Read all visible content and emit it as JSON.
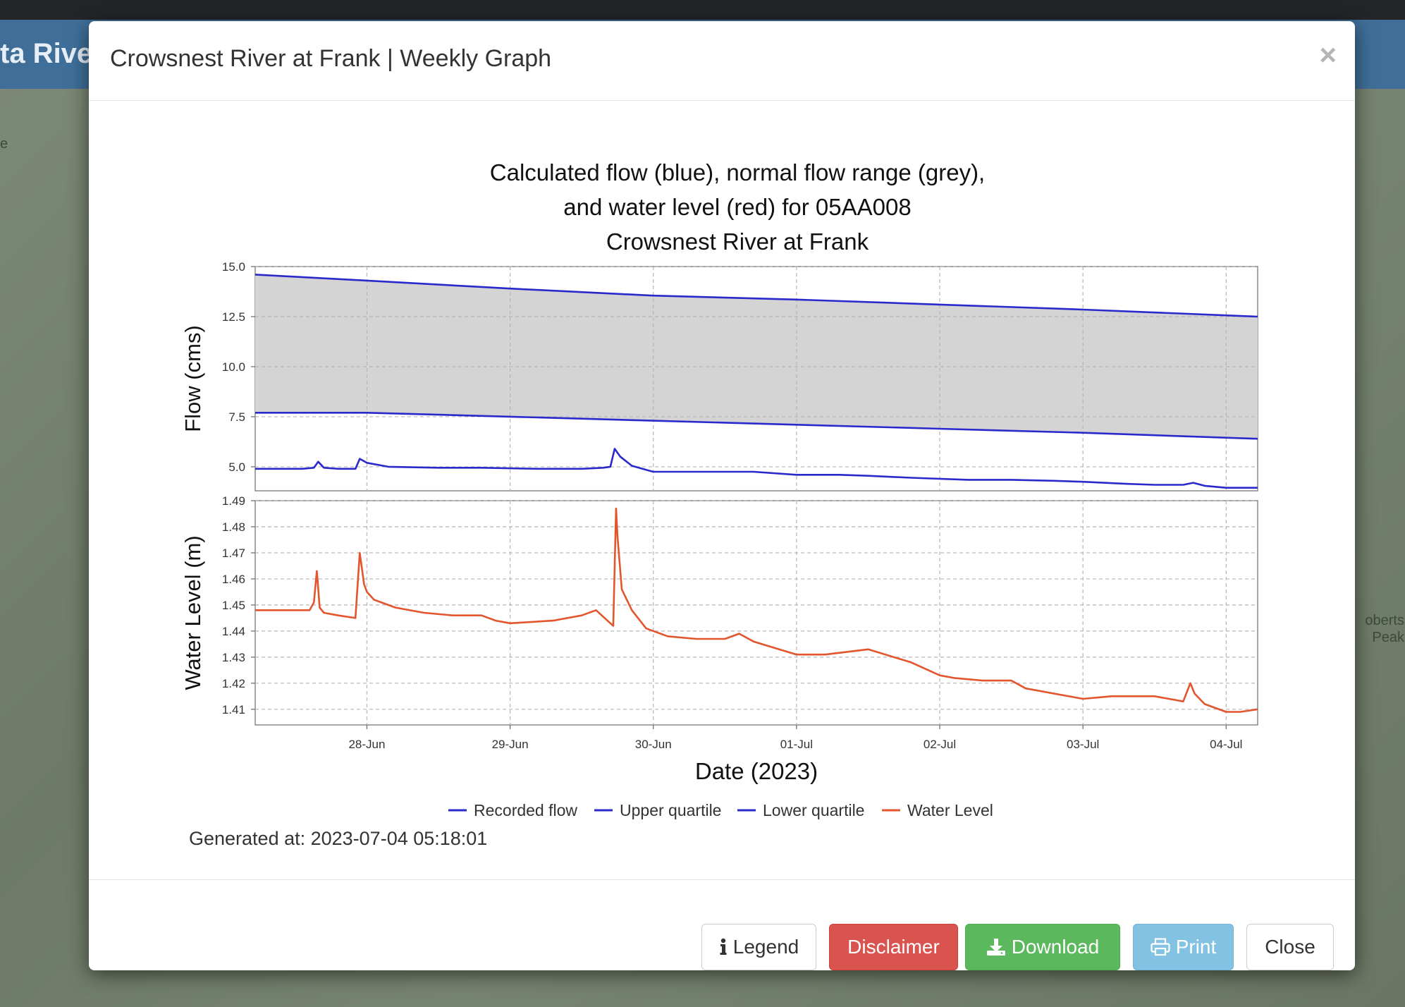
{
  "background": {
    "header_text": "ta Rive",
    "map_label_left": "e",
    "map_label_right": [
      "oberts",
      "Peak"
    ]
  },
  "modal": {
    "title": "Crowsnest River at Frank | Weekly Graph",
    "close_icon": "×",
    "generated_label": "Generated at: 2023-07-04 05:18:01",
    "buttons": {
      "legend": "Legend",
      "disclaimer": "Disclaimer",
      "download": "Download",
      "print": "Print",
      "close": "Close"
    },
    "icons": {
      "legend": "info-icon",
      "download": "download-icon",
      "print": "print-icon"
    },
    "colors": {
      "disclaimer": "#d9534f",
      "download": "#5cb85c",
      "print": "#83c2e2"
    }
  },
  "chart_data": {
    "type": "line",
    "title": [
      "Calculated flow (blue), normal flow range (grey),",
      "and water level (red) for 05AA008",
      "Crowsnest River at Frank"
    ],
    "xlabel": "Date (2023)",
    "x_ticks": [
      "28-Jun",
      "29-Jun",
      "30-Jun",
      "01-Jul",
      "02-Jul",
      "03-Jul",
      "04-Jul"
    ],
    "x_range_days": [
      -0.78,
      6.22
    ],
    "grid": true,
    "legend_position": "bottom",
    "colors": {
      "flow": "#2a2acc",
      "level": "#e2552d",
      "range_fill": "#d4d4d4"
    },
    "legend": [
      {
        "name": "Recorded flow",
        "color": "#2a2acc"
      },
      {
        "name": "Upper quartile",
        "color": "#2a2acc"
      },
      {
        "name": "Lower quartile",
        "color": "#2a2acc"
      },
      {
        "name": "Water Level",
        "color": "#e2552d"
      }
    ],
    "panels": [
      {
        "ylabel": "Flow (cms)",
        "ylim": [
          3.8,
          15.0
        ],
        "y_ticks": [
          "5.0",
          "7.5",
          "10.0",
          "12.5",
          "15.0"
        ],
        "y_tick_values": [
          5.0,
          7.5,
          10.0,
          12.5,
          15.0
        ],
        "series": [
          {
            "name": "Upper quartile",
            "x": [
              -0.78,
              0,
              1,
              2,
              3,
              4,
              5,
              6.22
            ],
            "y": [
              14.6,
              14.3,
              13.9,
              13.55,
              13.35,
              13.1,
              12.85,
              12.5
            ]
          },
          {
            "name": "Lower quartile",
            "x": [
              -0.78,
              0,
              1,
              2,
              3,
              4,
              5,
              6.22
            ],
            "y": [
              7.7,
              7.7,
              7.5,
              7.3,
              7.1,
              6.9,
              6.7,
              6.4
            ]
          },
          {
            "name": "Recorded flow",
            "x": [
              -0.78,
              -0.45,
              -0.37,
              -0.34,
              -0.3,
              -0.2,
              -0.08,
              -0.05,
              0.0,
              0.15,
              0.5,
              0.8,
              1.2,
              1.5,
              1.65,
              1.7,
              1.73,
              1.77,
              1.85,
              1.95,
              2.0,
              2.5,
              2.7,
              3.0,
              3.3,
              3.5,
              3.8,
              4.2,
              4.5,
              4.8,
              5.0,
              5.3,
              5.5,
              5.7,
              5.77,
              5.85,
              6.0,
              6.22
            ],
            "y": [
              4.9,
              4.9,
              4.95,
              5.25,
              4.95,
              4.9,
              4.9,
              5.4,
              5.2,
              5.0,
              4.95,
              4.95,
              4.9,
              4.9,
              4.95,
              5.0,
              5.9,
              5.5,
              5.05,
              4.85,
              4.75,
              4.75,
              4.75,
              4.6,
              4.6,
              4.55,
              4.45,
              4.35,
              4.35,
              4.3,
              4.25,
              4.15,
              4.1,
              4.1,
              4.2,
              4.05,
              3.95,
              3.95
            ]
          }
        ]
      },
      {
        "ylabel": "Water Level (m)",
        "ylim": [
          1.404,
          1.49
        ],
        "y_ticks": [
          "1.41",
          "1.42",
          "1.43",
          "1.44",
          "1.45",
          "1.46",
          "1.47",
          "1.48",
          "1.49"
        ],
        "y_tick_values": [
          1.41,
          1.42,
          1.43,
          1.44,
          1.45,
          1.46,
          1.47,
          1.48,
          1.49
        ],
        "series": [
          {
            "name": "Water Level",
            "x": [
              -0.78,
              -0.4,
              -0.37,
              -0.35,
              -0.345,
              -0.33,
              -0.3,
              -0.2,
              -0.08,
              -0.05,
              -0.03,
              -0.02,
              0.0,
              0.05,
              0.2,
              0.4,
              0.6,
              0.8,
              0.9,
              1.0,
              1.3,
              1.5,
              1.6,
              1.7,
              1.72,
              1.74,
              1.75,
              1.78,
              1.85,
              1.95,
              2.1,
              2.3,
              2.5,
              2.6,
              2.7,
              3.0,
              3.2,
              3.5,
              3.8,
              4.0,
              4.1,
              4.3,
              4.5,
              4.6,
              4.8,
              5.0,
              5.2,
              5.5,
              5.7,
              5.75,
              5.78,
              5.85,
              6.0,
              6.1,
              6.22
            ],
            "y": [
              1.448,
              1.448,
              1.451,
              1.463,
              1.46,
              1.449,
              1.447,
              1.446,
              1.445,
              1.47,
              1.462,
              1.458,
              1.455,
              1.452,
              1.449,
              1.447,
              1.446,
              1.446,
              1.444,
              1.443,
              1.444,
              1.446,
              1.448,
              1.443,
              1.442,
              1.487,
              1.476,
              1.456,
              1.448,
              1.441,
              1.438,
              1.437,
              1.437,
              1.439,
              1.436,
              1.431,
              1.431,
              1.433,
              1.428,
              1.423,
              1.422,
              1.421,
              1.421,
              1.418,
              1.416,
              1.414,
              1.415,
              1.415,
              1.413,
              1.42,
              1.416,
              1.412,
              1.409,
              1.409,
              1.41
            ]
          }
        ]
      }
    ]
  }
}
